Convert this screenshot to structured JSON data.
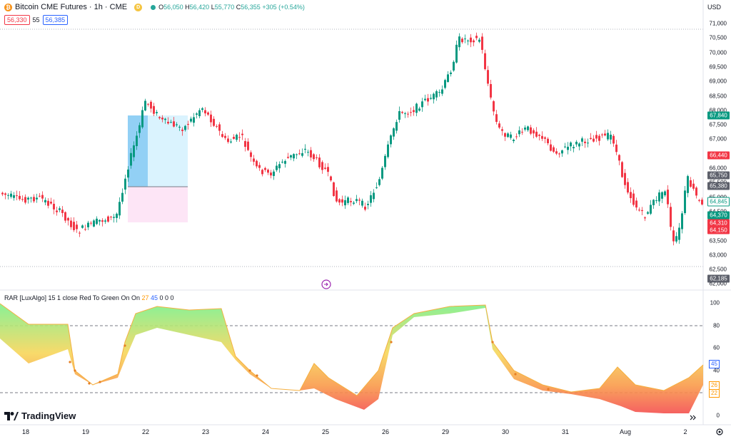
{
  "header": {
    "symbol": "Bitcoin CME Futures · 1h · CME",
    "ohlc": {
      "o_label": "O",
      "o": "56,050",
      "h_label": "H",
      "h": "56,420",
      "l_label": "L",
      "l": "55,770",
      "c_label": "C",
      "c": "56,355",
      "change": "+305 (+0.54%)"
    },
    "sell_price": "56,330",
    "spread": "55",
    "buy_price": "56,385",
    "currency": "USD"
  },
  "price_axis": {
    "ticks": [
      "71,000",
      "70,500",
      "70,000",
      "69,500",
      "69,000",
      "68,500",
      "68,000",
      "67,500",
      "67,000",
      "66,500",
      "66,000",
      "65,500",
      "65,000",
      "64,500",
      "64,000",
      "63,500",
      "63,000",
      "62,500",
      "62,000"
    ],
    "tags": [
      {
        "label": "67,840",
        "color": "#089981"
      },
      {
        "label": "66,440",
        "color": "#f23645"
      },
      {
        "label": "65,750",
        "color": "#5d606b"
      },
      {
        "label": "65,380",
        "color": "#5d606b"
      },
      {
        "label": "64,845",
        "color": "#089981"
      },
      {
        "label": "64,370",
        "color": "#089981"
      },
      {
        "label": "64,310",
        "color": "#f23645"
      },
      {
        "label": "64,150",
        "color": "#f23645"
      },
      {
        "label": "62,185",
        "color": "#5d606b"
      }
    ]
  },
  "indicator": {
    "name": "RAR [LuxAlgo]",
    "params": "15 1 close Red To Green On On",
    "val1": "27",
    "val2": "45",
    "zeros": "0 0 0",
    "ticks": [
      "100",
      "80",
      "60",
      "40",
      "20",
      "0"
    ],
    "tags": [
      {
        "label": "45",
        "color": "#2962ff"
      },
      {
        "label": "26",
        "color": "#ff9800"
      },
      {
        "label": "22",
        "color": "#ff9800"
      }
    ]
  },
  "date_axis": [
    "18",
    "19",
    "22",
    "23",
    "24",
    "25",
    "26",
    "29",
    "30",
    "31",
    "Aug",
    "2"
  ],
  "logo": "TradingView",
  "icons": [
    "bitcoin-icon",
    "delayed-badge-icon",
    "market-status-icon",
    "scroll-to-realtime-icon",
    "collapse-icon",
    "settings-icon",
    "tradingview-logo-icon"
  ]
}
